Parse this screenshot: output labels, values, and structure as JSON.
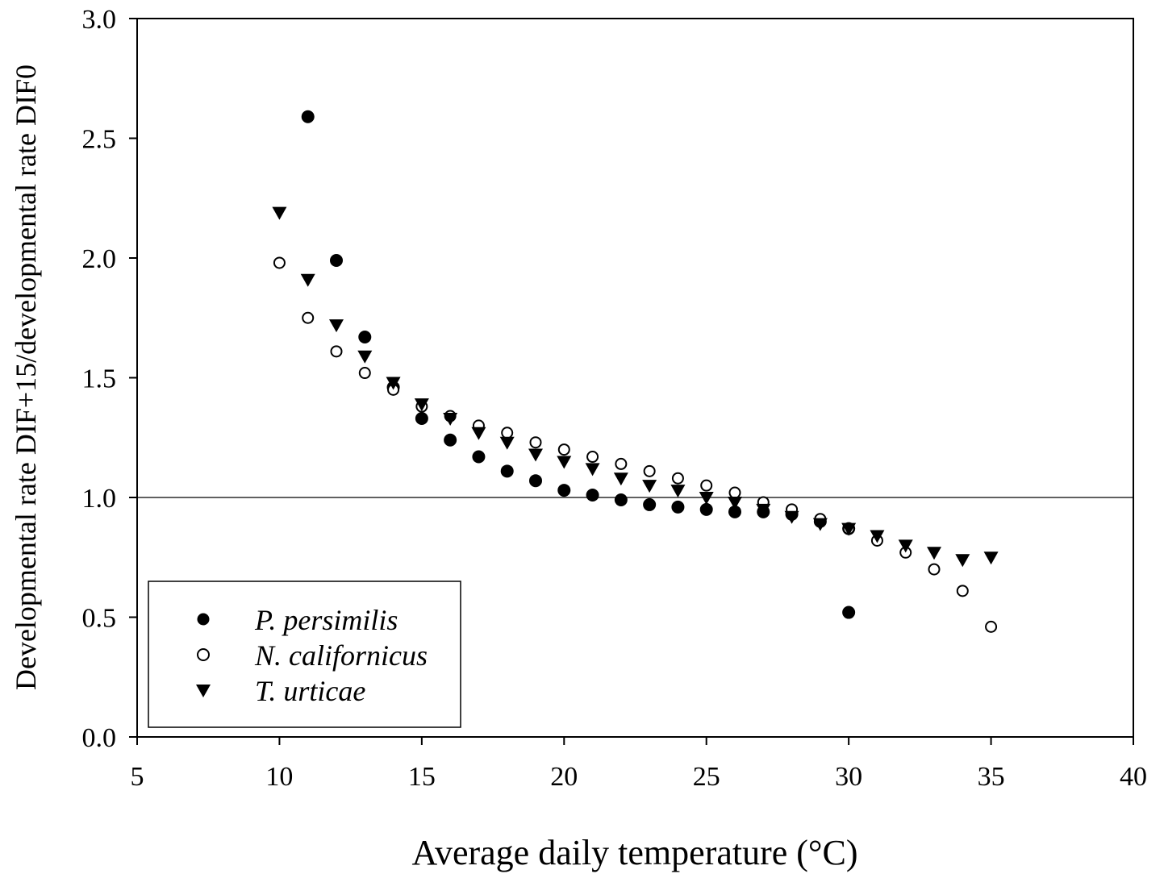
{
  "chart_data": {
    "type": "scatter",
    "title": "",
    "xlabel": "Average daily temperature (°C)",
    "ylabel": "Developmental rate DIF+15/developmental rate DIF0",
    "xlim": [
      5,
      40
    ],
    "ylim": [
      0.0,
      3.0
    ],
    "xticks": [
      5,
      10,
      15,
      20,
      25,
      30,
      35,
      40
    ],
    "yticks": [
      0.0,
      0.5,
      1.0,
      1.5,
      2.0,
      2.5,
      3.0
    ],
    "xtick_labels": [
      "5",
      "10",
      "15",
      "20",
      "25",
      "30",
      "35",
      "40"
    ],
    "ytick_labels": [
      "0.0",
      "0.5",
      "1.0",
      "1.5",
      "2.0",
      "2.5",
      "3.0"
    ],
    "reference_line_y": 1.0,
    "grid": false,
    "legend_position": "bottom-left",
    "series": [
      {
        "name": "P. persimilis",
        "marker": "filled-circle",
        "x": [
          11,
          12,
          13,
          14,
          15,
          16,
          17,
          18,
          19,
          20,
          21,
          22,
          23,
          24,
          25,
          26,
          27,
          28,
          29,
          30,
          30
        ],
        "y": [
          2.59,
          1.99,
          1.67,
          1.46,
          1.33,
          1.24,
          1.17,
          1.11,
          1.07,
          1.03,
          1.01,
          0.99,
          0.97,
          0.96,
          0.95,
          0.94,
          0.94,
          0.93,
          0.9,
          0.87,
          0.52
        ]
      },
      {
        "name": "N. californicus",
        "marker": "open-circle",
        "x": [
          10,
          11,
          12,
          13,
          14,
          15,
          16,
          17,
          18,
          19,
          20,
          21,
          22,
          23,
          24,
          25,
          26,
          27,
          28,
          29,
          30,
          31,
          32,
          33,
          34,
          35
        ],
        "y": [
          1.98,
          1.75,
          1.61,
          1.52,
          1.45,
          1.38,
          1.34,
          1.3,
          1.27,
          1.23,
          1.2,
          1.17,
          1.14,
          1.11,
          1.08,
          1.05,
          1.02,
          0.98,
          0.95,
          0.91,
          0.87,
          0.82,
          0.77,
          0.7,
          0.61,
          0.46
        ]
      },
      {
        "name": "T. urticae",
        "marker": "filled-triangle-down",
        "x": [
          10,
          11,
          12,
          13,
          14,
          15,
          16,
          17,
          18,
          19,
          20,
          21,
          22,
          23,
          24,
          25,
          26,
          27,
          28,
          29,
          30,
          31,
          32,
          33,
          34,
          35
        ],
        "y": [
          2.19,
          1.91,
          1.72,
          1.59,
          1.48,
          1.39,
          1.33,
          1.27,
          1.23,
          1.18,
          1.15,
          1.12,
          1.08,
          1.05,
          1.03,
          1.0,
          0.98,
          0.95,
          0.92,
          0.89,
          0.87,
          0.84,
          0.8,
          0.77,
          0.74,
          0.75
        ]
      }
    ]
  }
}
